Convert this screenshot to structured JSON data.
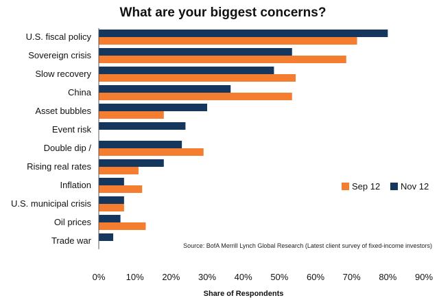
{
  "chart_data": {
    "type": "bar",
    "orientation": "horizontal",
    "title": "What are your biggest concerns?",
    "xlabel": "Share of Respondents",
    "ylabel": "",
    "xlim": [
      0,
      90
    ],
    "ticks": [
      "0%",
      "10%",
      "20%",
      "30%",
      "40%",
      "50%",
      "60%",
      "70%",
      "80%",
      "90%"
    ],
    "tick_values": [
      0,
      10,
      20,
      30,
      40,
      50,
      60,
      70,
      80,
      90
    ],
    "categories": [
      "U.S. fiscal policy",
      "Sovereign crisis",
      "Slow recovery",
      "China",
      "Asset bubbles",
      "Event risk",
      "Double dip /",
      "Rising real rates",
      "Inflation",
      "U.S. municipal crisis",
      "Oil prices",
      "Trade war"
    ],
    "series": [
      {
        "name": "Nov 12",
        "color": "#15375e",
        "values": [
          80,
          53.5,
          48.5,
          36.5,
          30,
          24,
          23,
          18,
          7,
          7,
          6,
          4
        ]
      },
      {
        "name": "Sep 12",
        "color": "#f47d30",
        "values": [
          71.5,
          68.5,
          54.5,
          53.5,
          18,
          null,
          29,
          11,
          12,
          7,
          13,
          null
        ]
      }
    ],
    "legend": {
      "position": "right",
      "order": [
        "Sep 12",
        "Nov 12"
      ]
    },
    "grid": false,
    "source": "Source: BofA Merrill Lynch Global Research (Latest client survey of fixed-income investors)"
  }
}
